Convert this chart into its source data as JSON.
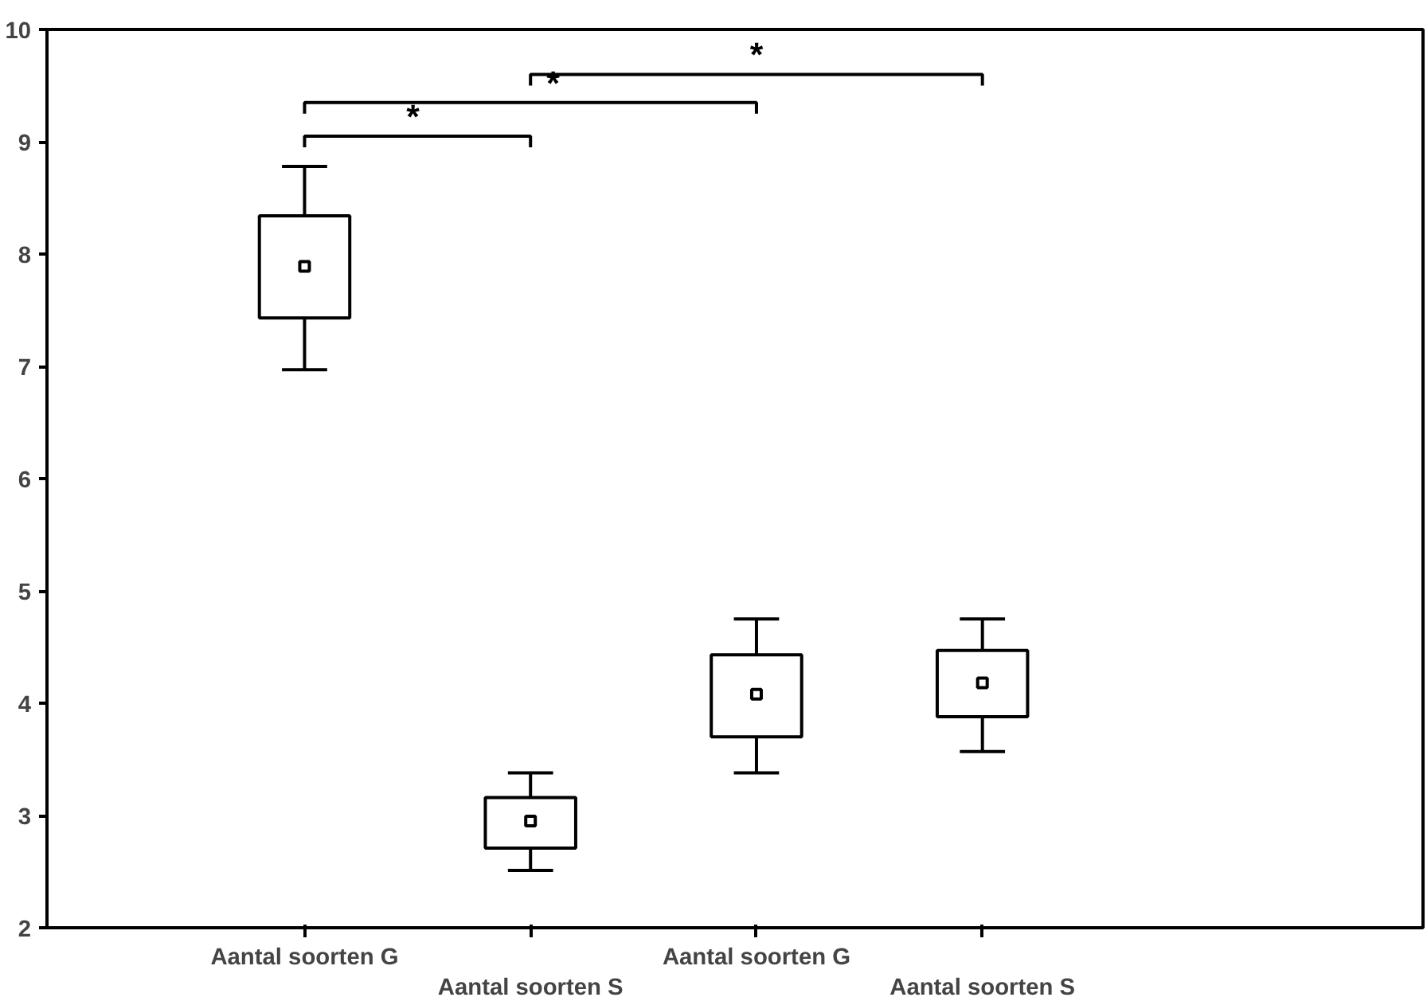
{
  "chart_data": {
    "type": "box",
    "categories": [
      "Aantal soorten G",
      "Aantal soorten S",
      "Aantal soorten G",
      "Aantal soorten S"
    ],
    "boxes": [
      {
        "low": 6.97,
        "q1": 7.43,
        "median": 7.89,
        "q3": 8.34,
        "high": 8.78
      },
      {
        "low": 2.51,
        "q1": 2.71,
        "median": 2.95,
        "q3": 3.16,
        "high": 3.38
      },
      {
        "low": 3.38,
        "q1": 3.7,
        "median": 4.08,
        "q3": 4.43,
        "high": 4.75
      },
      {
        "low": 3.57,
        "q1": 3.88,
        "median": 4.18,
        "q3": 4.47,
        "high": 4.75
      }
    ],
    "ylim": [
      2,
      10
    ],
    "yticks": [
      2,
      3,
      4,
      5,
      6,
      7,
      8,
      9,
      10
    ],
    "grid": false,
    "annotations": [
      "*",
      "*",
      "*"
    ]
  }
}
